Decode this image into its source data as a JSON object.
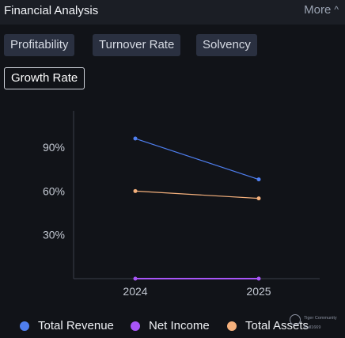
{
  "header": {
    "title": "Financial Analysis",
    "more_label": "More"
  },
  "tabs": [
    {
      "label": "Profitability",
      "active": false
    },
    {
      "label": "Turnover Rate",
      "active": false
    },
    {
      "label": "Solvency",
      "active": false
    },
    {
      "label": "Growth Rate",
      "active": true
    }
  ],
  "chart_data": {
    "type": "line",
    "x": [
      "2024",
      "2025"
    ],
    "y_ticks": [
      "30%",
      "60%",
      "90%"
    ],
    "ylim": [
      0,
      115
    ],
    "series": [
      {
        "name": "Total Revenue",
        "values": [
          96,
          68
        ],
        "color": "#4f7ff0"
      },
      {
        "name": "Net Income",
        "values": [
          0,
          0
        ],
        "color": "#a855f7"
      },
      {
        "name": "Total Assets",
        "values": [
          60,
          55
        ],
        "color": "#f4b07c"
      }
    ],
    "grid": false,
    "legend_position": "bottom"
  },
  "watermark": {
    "line1": "Tiger Community",
    "line2": "Bull1669"
  },
  "icons": {
    "more": "chevron-up-icon",
    "watermark_logo": "tiger-logo-icon"
  }
}
